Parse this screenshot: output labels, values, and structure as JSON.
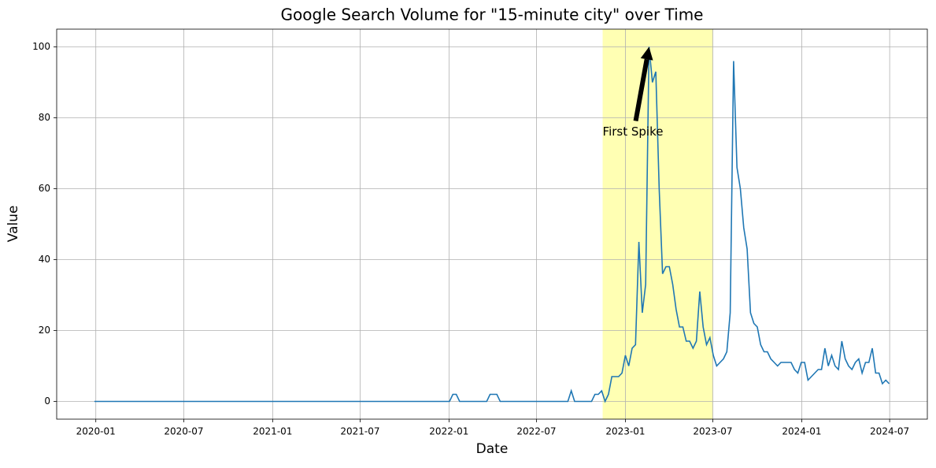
{
  "chart_data": {
    "type": "line",
    "title": "Google Search Volume for \"15-minute city\" over Time",
    "xlabel": "Date",
    "ylabel": "Value",
    "color": "#1f77b4",
    "grid": true,
    "xlim": [
      "2019-10-12",
      "2024-09-17"
    ],
    "ylim": [
      -5,
      105
    ],
    "xticks": [
      {
        "value": "2020-01-01",
        "label": "2020-01"
      },
      {
        "value": "2020-07-01",
        "label": "2020-07"
      },
      {
        "value": "2021-01-01",
        "label": "2021-01"
      },
      {
        "value": "2021-07-01",
        "label": "2021-07"
      },
      {
        "value": "2022-01-01",
        "label": "2022-01"
      },
      {
        "value": "2022-07-01",
        "label": "2022-07"
      },
      {
        "value": "2023-01-01",
        "label": "2023-01"
      },
      {
        "value": "2023-07-01",
        "label": "2023-07"
      },
      {
        "value": "2024-01-01",
        "label": "2024-01"
      },
      {
        "value": "2024-07-01",
        "label": "2024-07"
      }
    ],
    "yticks": [
      0,
      20,
      40,
      60,
      80,
      100
    ],
    "span": {
      "x": [
        "2022-11-15",
        "2023-07-01"
      ],
      "color": "#ffffb3"
    },
    "annotation": {
      "text": "First Spike",
      "xy": [
        "2023-02-19",
        100
      ],
      "xytext": [
        "2022-11-15",
        76
      ]
    },
    "x": [
      "2019-12-29",
      "2020-01-05",
      "2020-01-12",
      "2020-01-19",
      "2020-01-26",
      "2020-02-02",
      "2020-02-09",
      "2020-02-16",
      "2020-02-23",
      "2020-03-01",
      "2020-03-08",
      "2020-03-15",
      "2020-03-22",
      "2020-03-29",
      "2020-04-05",
      "2020-04-12",
      "2020-04-19",
      "2020-04-26",
      "2020-05-03",
      "2020-05-10",
      "2020-05-17",
      "2020-05-24",
      "2020-05-31",
      "2020-06-07",
      "2020-06-14",
      "2020-06-21",
      "2020-06-28",
      "2020-07-05",
      "2020-07-12",
      "2020-07-19",
      "2020-07-26",
      "2020-08-02",
      "2020-08-09",
      "2020-08-16",
      "2020-08-23",
      "2020-08-30",
      "2020-09-06",
      "2020-09-13",
      "2020-09-20",
      "2020-09-27",
      "2020-10-04",
      "2020-10-11",
      "2020-10-18",
      "2020-10-25",
      "2020-11-01",
      "2020-11-08",
      "2020-11-15",
      "2020-11-22",
      "2020-11-29",
      "2020-12-06",
      "2020-12-13",
      "2020-12-20",
      "2020-12-27",
      "2021-01-03",
      "2021-01-10",
      "2021-01-17",
      "2021-01-24",
      "2021-01-31",
      "2021-02-07",
      "2021-02-14",
      "2021-02-21",
      "2021-02-28",
      "2021-03-07",
      "2021-03-14",
      "2021-03-21",
      "2021-03-28",
      "2021-04-04",
      "2021-04-11",
      "2021-04-18",
      "2021-04-25",
      "2021-05-02",
      "2021-05-09",
      "2021-05-16",
      "2021-05-23",
      "2021-05-30",
      "2021-06-06",
      "2021-06-13",
      "2021-06-20",
      "2021-06-27",
      "2021-07-04",
      "2021-07-11",
      "2021-07-18",
      "2021-07-25",
      "2021-08-01",
      "2021-08-08",
      "2021-08-15",
      "2021-08-22",
      "2021-08-29",
      "2021-09-05",
      "2021-09-12",
      "2021-09-19",
      "2021-09-26",
      "2021-10-03",
      "2021-10-10",
      "2021-10-17",
      "2021-10-24",
      "2021-10-31",
      "2021-11-07",
      "2021-11-14",
      "2021-11-21",
      "2021-11-28",
      "2021-12-05",
      "2021-12-12",
      "2021-12-19",
      "2021-12-26",
      "2022-01-02",
      "2022-01-09",
      "2022-01-16",
      "2022-01-23",
      "2022-01-30",
      "2022-02-06",
      "2022-02-13",
      "2022-02-20",
      "2022-02-27",
      "2022-03-06",
      "2022-03-13",
      "2022-03-20",
      "2022-03-27",
      "2022-04-03",
      "2022-04-10",
      "2022-04-17",
      "2022-04-24",
      "2022-05-01",
      "2022-05-08",
      "2022-05-15",
      "2022-05-22",
      "2022-05-29",
      "2022-06-05",
      "2022-06-12",
      "2022-06-19",
      "2022-06-26",
      "2022-07-03",
      "2022-07-10",
      "2022-07-17",
      "2022-07-24",
      "2022-07-31",
      "2022-08-07",
      "2022-08-14",
      "2022-08-21",
      "2022-08-28",
      "2022-09-04",
      "2022-09-11",
      "2022-09-18",
      "2022-09-25",
      "2022-10-02",
      "2022-10-09",
      "2022-10-16",
      "2022-10-23",
      "2022-10-30",
      "2022-11-06",
      "2022-11-13",
      "2022-11-20",
      "2022-11-27",
      "2022-12-04",
      "2022-12-11",
      "2022-12-18",
      "2022-12-25",
      "2023-01-01",
      "2023-01-08",
      "2023-01-15",
      "2023-01-22",
      "2023-01-29",
      "2023-02-05",
      "2023-02-12",
      "2023-02-19",
      "2023-02-26",
      "2023-03-05",
      "2023-03-12",
      "2023-03-19",
      "2023-03-26",
      "2023-04-02",
      "2023-04-09",
      "2023-04-16",
      "2023-04-23",
      "2023-04-30",
      "2023-05-07",
      "2023-05-14",
      "2023-05-21",
      "2023-05-28",
      "2023-06-04",
      "2023-06-11",
      "2023-06-18",
      "2023-06-25",
      "2023-07-02",
      "2023-07-09",
      "2023-07-16",
      "2023-07-23",
      "2023-07-30",
      "2023-08-06",
      "2023-08-13",
      "2023-08-20",
      "2023-08-27",
      "2023-09-03",
      "2023-09-10",
      "2023-09-17",
      "2023-09-24",
      "2023-10-01",
      "2023-10-08",
      "2023-10-15",
      "2023-10-22",
      "2023-10-29",
      "2023-11-05",
      "2023-11-12",
      "2023-11-19",
      "2023-11-26",
      "2023-12-03",
      "2023-12-10",
      "2023-12-17",
      "2023-12-24",
      "2023-12-31",
      "2024-01-07",
      "2024-01-14",
      "2024-01-21",
      "2024-01-28",
      "2024-02-04",
      "2024-02-11",
      "2024-02-18",
      "2024-02-25",
      "2024-03-03",
      "2024-03-10",
      "2024-03-17",
      "2024-03-24",
      "2024-03-31",
      "2024-04-07",
      "2024-04-14",
      "2024-04-21",
      "2024-04-28",
      "2024-05-05",
      "2024-05-12",
      "2024-05-19",
      "2024-05-26",
      "2024-06-02",
      "2024-06-09",
      "2024-06-16",
      "2024-06-23",
      "2024-06-30"
    ],
    "values": [
      0,
      0,
      0,
      0,
      0,
      0,
      0,
      0,
      0,
      0,
      0,
      0,
      0,
      0,
      0,
      0,
      0,
      0,
      0,
      0,
      0,
      0,
      0,
      0,
      0,
      0,
      0,
      0,
      0,
      0,
      0,
      0,
      0,
      0,
      0,
      0,
      0,
      0,
      0,
      0,
      0,
      0,
      0,
      0,
      0,
      0,
      0,
      0,
      0,
      0,
      0,
      0,
      0,
      0,
      0,
      0,
      0,
      0,
      0,
      0,
      0,
      0,
      0,
      0,
      0,
      0,
      0,
      0,
      0,
      0,
      0,
      0,
      0,
      0,
      0,
      0,
      0,
      0,
      0,
      0,
      0,
      0,
      0,
      0,
      0,
      0,
      0,
      0,
      0,
      0,
      0,
      0,
      0,
      0,
      0,
      0,
      0,
      0,
      0,
      0,
      0,
      0,
      0,
      0,
      0,
      0,
      2,
      2,
      0,
      0,
      0,
      0,
      0,
      0,
      0,
      0,
      0,
      2,
      2,
      2,
      0,
      0,
      0,
      0,
      0,
      0,
      0,
      0,
      0,
      0,
      0,
      0,
      0,
      0,
      0,
      0,
      0,
      0,
      0,
      0,
      0,
      3,
      0,
      0,
      0,
      0,
      0,
      0,
      2,
      2,
      3,
      0,
      2,
      7,
      7,
      7,
      8,
      13,
      10,
      15,
      16,
      45,
      25,
      33,
      100,
      90,
      93,
      60,
      36,
      38,
      38,
      33,
      26,
      21,
      21,
      17,
      17,
      15,
      17,
      31,
      21,
      16,
      18,
      13,
      10,
      11,
      12,
      14,
      25,
      96,
      66,
      60,
      49,
      43,
      25,
      22,
      21,
      16,
      14,
      14,
      12,
      11,
      10,
      11,
      11,
      11,
      11,
      9,
      8,
      11,
      11,
      6,
      7,
      8,
      9,
      9,
      15,
      10,
      13,
      10,
      9,
      17,
      12,
      10,
      9,
      11,
      12,
      8,
      11,
      11,
      15,
      8,
      8,
      5,
      6,
      5
    ]
  }
}
